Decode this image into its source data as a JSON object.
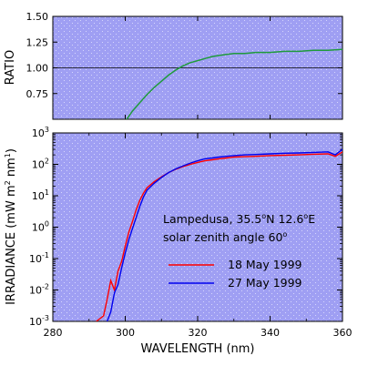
{
  "chart_data": [
    {
      "type": "line",
      "ylabel": "RATIO",
      "xlim": [
        280,
        360
      ],
      "ylim": [
        0.5,
        1.5
      ],
      "yticks": [
        "1.50",
        "1.25",
        "1.00",
        "0.75"
      ],
      "reference_line": 1.0,
      "grid": false,
      "series": [
        {
          "color": "#1f9a3c",
          "x": [
            300,
            302,
            304,
            306,
            308,
            310,
            312,
            314,
            316,
            318,
            320,
            322,
            324,
            326,
            328,
            330,
            333,
            336,
            340,
            344,
            348,
            352,
            356,
            360
          ],
          "y": [
            0.48,
            0.58,
            0.66,
            0.74,
            0.81,
            0.87,
            0.93,
            0.98,
            1.02,
            1.05,
            1.07,
            1.09,
            1.11,
            1.12,
            1.13,
            1.14,
            1.14,
            1.15,
            1.15,
            1.16,
            1.16,
            1.17,
            1.17,
            1.18
          ]
        }
      ]
    },
    {
      "type": "line",
      "xlabel": "WAVELENGTH (nm)",
      "ylabel_parts": [
        "IRRADIANCE (mW m",
        "2",
        " nm",
        "1",
        ")"
      ],
      "xlim": [
        280,
        360
      ],
      "xticks": [
        "280",
        "300",
        "320",
        "340",
        "360"
      ],
      "yscale": "log",
      "ylim": [
        0.001,
        1000
      ],
      "ytick_bases": [
        "10",
        "10",
        "10",
        "10",
        "10",
        "10",
        "10"
      ],
      "ytick_exponents": [
        "3",
        "2",
        "1",
        "0",
        "-1",
        "-2",
        "-3"
      ],
      "grid": false,
      "annotation": {
        "line1_parts": [
          "Lampedusa, 35.5",
          "o",
          "N 12.6",
          "o",
          "E"
        ],
        "line2_parts": [
          "solar zenith angle 60",
          "o"
        ]
      },
      "legend": {
        "position": "lower-right",
        "entries": [
          {
            "label": "18 May 1999",
            "color": "#ff0000"
          },
          {
            "label": "27 May 1999",
            "color": "#0000ee"
          }
        ]
      },
      "series": [
        {
          "name": "18 May 1999",
          "color": "#ff0000",
          "x": [
            292,
            294,
            295,
            296,
            297,
            298,
            299,
            300,
            301,
            302,
            303,
            304,
            305,
            306,
            308,
            310,
            312,
            314,
            316,
            318,
            320,
            322,
            324,
            326,
            328,
            330,
            333,
            336,
            340,
            344,
            348,
            352,
            356,
            358,
            360
          ],
          "y": [
            0.001,
            0.0015,
            0.005,
            0.02,
            0.01,
            0.04,
            0.08,
            0.25,
            0.7,
            1.5,
            3.5,
            7,
            12,
            18,
            28,
            40,
            55,
            70,
            85,
            100,
            115,
            130,
            140,
            150,
            160,
            170,
            175,
            180,
            190,
            195,
            200,
            210,
            215,
            180,
            250
          ]
        },
        {
          "name": "27 May 1999",
          "color": "#0000ee",
          "x": [
            295,
            296,
            297,
            298,
            299,
            300,
            301,
            302,
            303,
            304,
            305,
            306,
            308,
            310,
            312,
            314,
            316,
            318,
            320,
            322,
            324,
            326,
            328,
            330,
            333,
            336,
            340,
            344,
            348,
            352,
            356,
            358,
            360
          ],
          "y": [
            0.001,
            0.002,
            0.008,
            0.015,
            0.05,
            0.15,
            0.4,
            0.9,
            2,
            4.5,
            9,
            15,
            25,
            38,
            55,
            72,
            90,
            110,
            130,
            150,
            160,
            170,
            180,
            190,
            200,
            205,
            215,
            225,
            230,
            240,
            250,
            200,
            300
          ]
        }
      ]
    }
  ]
}
